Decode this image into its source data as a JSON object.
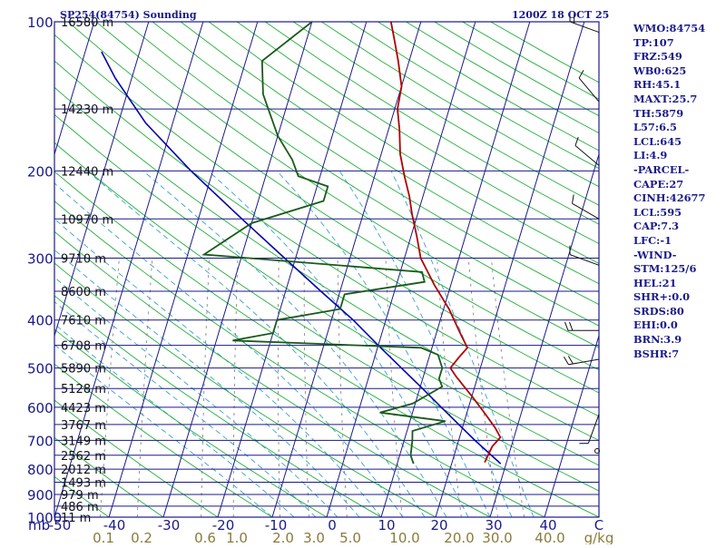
{
  "header": {
    "station": "SP254(84754) Sounding",
    "valid_time": "1200Z 18 OCT 25"
  },
  "colors": {
    "isobar": "#1a1a8a",
    "isotherm": "#1a1a8a",
    "dry_adiabat": "#22b03a",
    "moist_adiabat": "#3aa0d0",
    "mixing_ratio": "#7a7a7a",
    "temperature": "#b00000",
    "dewpoint": "#1a5a1a",
    "parcel": "#0000b0",
    "axis_text": "#8a7a3a"
  },
  "chart_data": {
    "type": "skew-t log-p sounding",
    "title": "SP254(84754) Sounding 1200Z 18 OCT 25",
    "pressure_unit": "mb",
    "pressure_range_mb": [
      1000,
      100
    ],
    "temperature_range_c": [
      -50,
      50
    ],
    "pressure_levels": [
      100,
      200,
      300,
      400,
      500,
      600,
      700,
      800,
      900,
      1000
    ],
    "heights": [
      {
        "p": 100,
        "label": "16580 m"
      },
      {
        "p": 150,
        "label": "14230 m"
      },
      {
        "p": 200,
        "label": "12440 m"
      },
      {
        "p": 250,
        "label": "10970 m"
      },
      {
        "p": 300,
        "label": "9710 m"
      },
      {
        "p": 350,
        "label": "8600 m"
      },
      {
        "p": 400,
        "label": "7610 m"
      },
      {
        "p": 450,
        "label": "6708 m"
      },
      {
        "p": 500,
        "label": "5890 m"
      },
      {
        "p": 550,
        "label": "5128 m"
      },
      {
        "p": 600,
        "label": "4423 m"
      },
      {
        "p": 650,
        "label": "3767 m"
      },
      {
        "p": 700,
        "label": "3149 m"
      },
      {
        "p": 750,
        "label": "2562 m"
      },
      {
        "p": 800,
        "label": "2012 m"
      },
      {
        "p": 850,
        "label": "1493 m"
      },
      {
        "p": 900,
        "label": "979 m"
      },
      {
        "p": 950,
        "label": "486 m"
      },
      {
        "p": 1000,
        "label": "11 m"
      }
    ],
    "temperature_ticks": [
      "-50",
      "-40",
      "-30",
      "-20",
      "-10",
      "0",
      "10",
      "20",
      "30",
      "40",
      "C"
    ],
    "mixing_ratio_ticks": [
      "0.1",
      "0.2",
      "0.6",
      "1.0",
      "2.0",
      "3.0",
      "5.0",
      "10.0",
      "20.0",
      "30.0",
      "40.0",
      "g/kg"
    ],
    "temperature_profile": [
      {
        "p": 775,
        "t": 26.0
      },
      {
        "p": 720,
        "t": 26.5
      },
      {
        "p": 690,
        "t": 27.5
      },
      {
        "p": 660,
        "t": 26.0
      },
      {
        "p": 620,
        "t": 23.5
      },
      {
        "p": 570,
        "t": 20.0
      },
      {
        "p": 520,
        "t": 16.0
      },
      {
        "p": 500,
        "t": 14.5
      },
      {
        "p": 475,
        "t": 15.5
      },
      {
        "p": 455,
        "t": 16.5
      },
      {
        "p": 420,
        "t": 14.0
      },
      {
        "p": 380,
        "t": 11.0
      },
      {
        "p": 340,
        "t": 7.0
      },
      {
        "p": 300,
        "t": 3.0
      },
      {
        "p": 270,
        "t": 1.0
      },
      {
        "p": 245,
        "t": -1.0
      },
      {
        "p": 225,
        "t": -2.5
      },
      {
        "p": 205,
        "t": -4.5
      },
      {
        "p": 185,
        "t": -6.5
      },
      {
        "p": 165,
        "t": -8.0
      },
      {
        "p": 150,
        "t": -9.5
      },
      {
        "p": 135,
        "t": -10.0
      },
      {
        "p": 120,
        "t": -12.0
      },
      {
        "p": 108,
        "t": -14.0
      },
      {
        "p": 100,
        "t": -15.5
      }
    ],
    "dewpoint_profile": [
      {
        "p": 780,
        "t": 13.0
      },
      {
        "p": 750,
        "t": 12.0
      },
      {
        "p": 700,
        "t": 11.5
      },
      {
        "p": 670,
        "t": 11.0
      },
      {
        "p": 640,
        "t": 16.5
      },
      {
        "p": 615,
        "t": 4.0
      },
      {
        "p": 590,
        "t": 9.5
      },
      {
        "p": 545,
        "t": 14.0
      },
      {
        "p": 525,
        "t": 13.0
      },
      {
        "p": 500,
        "t": 13.0
      },
      {
        "p": 470,
        "t": 11.5
      },
      {
        "p": 455,
        "t": 8.0
      },
      {
        "p": 440,
        "t": -27.0
      },
      {
        "p": 425,
        "t": -20.0
      },
      {
        "p": 400,
        "t": -20.0
      },
      {
        "p": 380,
        "t": -9.0
      },
      {
        "p": 355,
        "t": -9.0
      },
      {
        "p": 335,
        "t": 5.0
      },
      {
        "p": 320,
        "t": 4.0
      },
      {
        "p": 295,
        "t": -37.0
      },
      {
        "p": 255,
        "t": -30.0
      },
      {
        "p": 230,
        "t": -18.0
      },
      {
        "p": 215,
        "t": -18.0
      },
      {
        "p": 205,
        "t": -24.0
      },
      {
        "p": 190,
        "t": -26.0
      },
      {
        "p": 170,
        "t": -30.0
      },
      {
        "p": 140,
        "t": -35.0
      },
      {
        "p": 120,
        "t": -37.0
      },
      {
        "p": 100,
        "t": -30.0
      }
    ],
    "parcel_profile": [
      {
        "p": 780,
        "t": 29.0
      },
      {
        "p": 700,
        "t": 23.0
      },
      {
        "p": 600,
        "t": 15.0
      },
      {
        "p": 550,
        "t": 10.5
      },
      {
        "p": 500,
        "t": 5.5
      },
      {
        "p": 450,
        "t": 0.0
      },
      {
        "p": 400,
        "t": -6.0
      },
      {
        "p": 350,
        "t": -13.5
      },
      {
        "p": 300,
        "t": -22.0
      },
      {
        "p": 250,
        "t": -32.0
      },
      {
        "p": 200,
        "t": -44.0
      },
      {
        "p": 160,
        "t": -55.0
      },
      {
        "p": 130,
        "t": -63.0
      },
      {
        "p": 115,
        "t": -67.0
      }
    ],
    "wind_barbs": [
      {
        "p": 105,
        "dir": 290,
        "spd": 15
      },
      {
        "p": 145,
        "dir": 320,
        "spd": 10
      },
      {
        "p": 195,
        "dir": 310,
        "spd": 10
      },
      {
        "p": 250,
        "dir": 300,
        "spd": 10
      },
      {
        "p": 310,
        "dir": 290,
        "spd": 10
      },
      {
        "p": 420,
        "dir": 270,
        "spd": 15
      },
      {
        "p": 480,
        "dir": 260,
        "spd": 20
      },
      {
        "p": 620,
        "dir": 200,
        "spd": 10
      }
    ]
  },
  "stats": [
    "WMO:84754",
    "TP:107",
    "FRZ:549",
    "WB0:625",
    "RH:45.1",
    "MAXT:25.7",
    "TH:5879",
    "L57:6.5",
    "LCL:645",
    "LI:4.9",
    "-PARCEL-",
    "CAPE:27",
    "CINH:42677",
    "LCL:595",
    "CAP:7.3",
    "LFC:-1",
    "-WIND-",
    "STM:125/6",
    "HEL:21",
    "SHR+:0.0",
    "SRDS:80",
    "EHI:0.0",
    "BRN:3.9",
    "BSHR:7"
  ]
}
